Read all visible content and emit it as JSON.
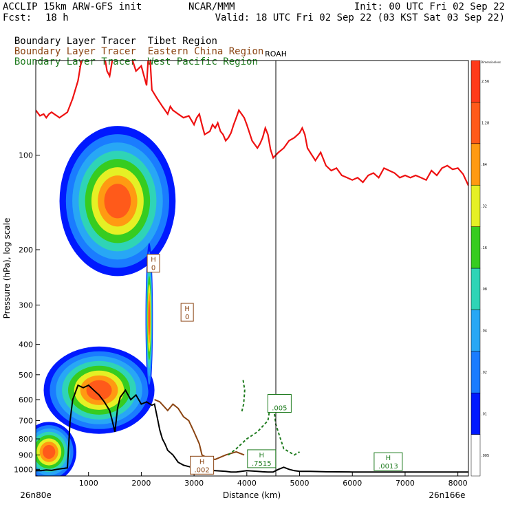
{
  "header": {
    "model": "ACCLIP 15km ARW-GFS init",
    "center": "NCAR/MMM",
    "init": "Init: 00 UTC Fri 02 Sep 22",
    "fcst_label": "Fcst:",
    "fcst_value": "18 h",
    "valid": "Valid: 18 UTC Fri 02 Sep 22 (03 KST Sat 03 Sep 22)"
  },
  "legend": [
    {
      "label": "Boundary Layer Tracer",
      "region": "Tibet Region",
      "color": "#000000"
    },
    {
      "label": "Boundary Layer Tracer",
      "region": "Eastern China Region",
      "color": "#8B4513"
    },
    {
      "label": "Boundary Layer Tracer",
      "region": "West Pacific Region",
      "color": "#1E7B1E"
    }
  ],
  "chart_data": {
    "type": "area",
    "xlabel": "Distance (km)",
    "ylabel": "Pressure (hPa), log scale",
    "y_scale": "log",
    "xlim": [
      0,
      8200
    ],
    "ylim": [
      1050,
      50
    ],
    "x_ticks": [
      0,
      1000,
      2000,
      3000,
      4000,
      5000,
      6000,
      7000,
      8000
    ],
    "y_ticks": [
      100,
      200,
      300,
      400,
      500,
      600,
      700,
      800,
      900,
      1000
    ],
    "x_end_labels": {
      "left": "26n80e",
      "right": "26n166e"
    },
    "marker": {
      "label": "ROAH",
      "x": 4550
    },
    "colorbar": {
      "title": "Dimensionless",
      "levels": [
        ".005",
        ".01",
        ".02",
        ".04",
        ".08",
        ".16",
        ".32",
        ".64",
        "1.28",
        "2.56"
      ],
      "colors": [
        "#ffffff",
        "#0019ff",
        "#1a7cff",
        "#28a7f5",
        "#2fd4b6",
        "#36cc20",
        "#e5f025",
        "#ff9a12",
        "#ff5a1a",
        "#ff3a1a"
      ]
    },
    "tropopause": {
      "name": "",
      "color": "#ee1111",
      "x": [
        0,
        80,
        150,
        200,
        250,
        300,
        350,
        400,
        450,
        500,
        550,
        600,
        700,
        800,
        900,
        1000,
        1100,
        1200,
        1300,
        1350,
        1400,
        1450,
        1500,
        1550,
        1600,
        1700,
        1800,
        1900,
        2000,
        2100,
        2150,
        2200,
        2300,
        2400,
        2500,
        2550,
        2600,
        2700,
        2800,
        2900,
        3000,
        3050,
        3100,
        3150,
        3200,
        3300,
        3350,
        3400,
        3450,
        3500,
        3550,
        3600,
        3650,
        3700,
        3750,
        3800,
        3850,
        3900,
        3950,
        4000,
        4100,
        4200,
        4250,
        4300,
        4350,
        4400,
        4450,
        4500,
        4600,
        4700,
        4800,
        4900,
        5000,
        5050,
        5100,
        5150,
        5200,
        5300,
        5400,
        5500,
        5600,
        5700,
        5800,
        5900,
        6000,
        6100,
        6200,
        6300,
        6400,
        6500,
        6600,
        6700,
        6800,
        6900,
        7000,
        7100,
        7200,
        7300,
        7400,
        7500,
        7600,
        7700,
        7800,
        7900,
        8000,
        8100,
        8200
      ],
      "p": [
        72,
        75,
        74,
        76,
        74,
        73,
        74,
        75,
        76,
        75,
        74,
        73,
        66,
        58,
        46,
        40,
        43,
        45,
        48,
        54,
        56,
        50,
        40,
        35,
        40,
        46,
        48,
        54,
        52,
        60,
        44,
        62,
        66,
        70,
        74,
        70,
        72,
        74,
        76,
        75,
        80,
        76,
        74,
        80,
        86,
        84,
        80,
        82,
        79,
        84,
        86,
        90,
        88,
        85,
        80,
        76,
        72,
        74,
        76,
        80,
        90,
        95,
        92,
        88,
        82,
        86,
        96,
        102,
        98,
        95,
        90,
        88,
        85,
        82,
        86,
        95,
        98,
        104,
        98,
        108,
        112,
        110,
        116,
        118,
        120,
        118,
        122,
        116,
        114,
        118,
        110,
        112,
        114,
        118,
        116,
        118,
        116,
        118,
        120,
        112,
        116,
        110,
        108,
        111,
        110,
        115,
        125
      ]
    },
    "terrain": {
      "name": "",
      "x": [
        0,
        100,
        200,
        300,
        400,
        500,
        600,
        650,
        700,
        800,
        900,
        1000,
        1100,
        1200,
        1300,
        1400,
        1450,
        1500,
        1550,
        1600,
        1700,
        1800,
        1900,
        2000,
        2100,
        2200,
        2250,
        2300,
        2350,
        2400,
        2450,
        2500,
        2600,
        2700,
        2800,
        2900,
        3000,
        3100,
        3200,
        3300,
        3400,
        3500,
        3600,
        3700,
        3800,
        3900,
        4000,
        4100,
        4200,
        4300,
        4400,
        4500,
        4600,
        4700,
        4800,
        4900,
        5000,
        5200,
        5500,
        6000,
        6500,
        7000,
        7500,
        8000,
        8200
      ],
      "p": [
        1010,
        1010,
        1005,
        1008,
        1000,
        995,
        990,
        700,
        600,
        540,
        550,
        540,
        560,
        580,
        610,
        650,
        700,
        760,
        640,
        590,
        560,
        600,
        580,
        620,
        610,
        625,
        620,
        680,
        750,
        800,
        830,
        870,
        900,
        950,
        970,
        980,
        990,
        1000,
        1005,
        1008,
        1010,
        1012,
        1015,
        1020,
        1020,
        1015,
        1010,
        1012,
        1015,
        1018,
        1020,
        1020,
        1000,
        985,
        1000,
        1010,
        1015,
        1015,
        1018,
        1020,
        1020,
        1020,
        1020,
        1020,
        1020
      ]
    },
    "labels": [
      {
        "text_h": "H",
        "text_v": "0",
        "x": 2230,
        "p": 222,
        "color": "#8B4513"
      },
      {
        "text_h": "H",
        "text_v": "0",
        "x": 2870,
        "p": 318,
        "color": "#8B4513"
      },
      {
        "text_h": "H",
        "text_v": ".002",
        "x": 3150,
        "p": 975,
        "color": "#8B4513"
      },
      {
        "text_h": "",
        "text_v": ".005",
        "x": 4620,
        "p": 620,
        "color": "#1E7B1E"
      },
      {
        "text_h": "H",
        "text_v": ".7515",
        "x": 4280,
        "p": 930,
        "color": "#1E7B1E"
      },
      {
        "text_h": "H",
        "text_v": ".0013",
        "x": 6680,
        "p": 950,
        "color": "#1E7B1E"
      }
    ]
  }
}
